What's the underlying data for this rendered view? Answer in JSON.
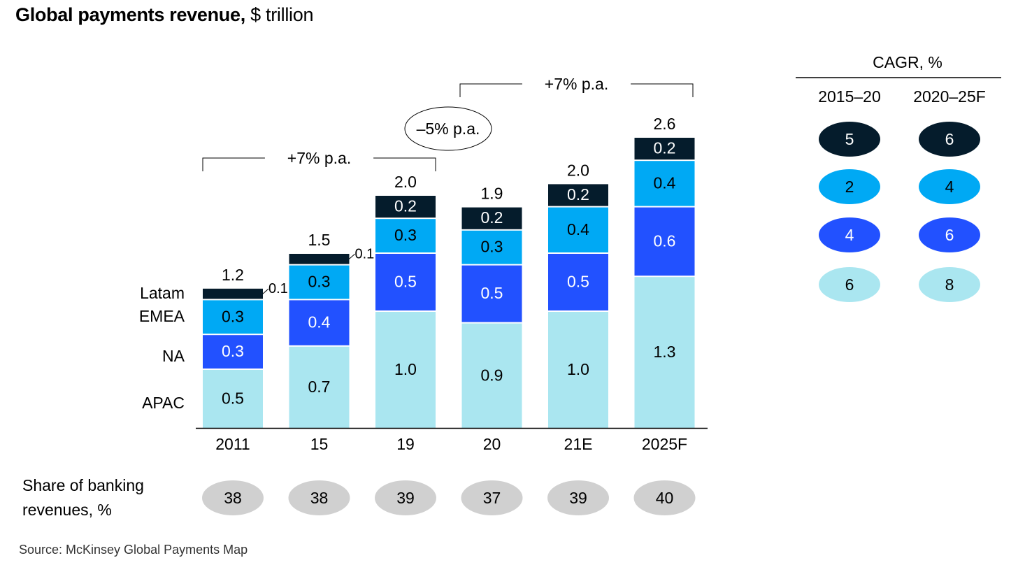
{
  "title": {
    "bold": "Global payments revenue,",
    "unit": "$ trillion"
  },
  "source": "Source: McKinsey Global Payments Map",
  "colors": {
    "Latam": "#051c2c",
    "EMEA": "#00a9f4",
    "NA": "#2251ff",
    "APAC": "#aae6f0",
    "share": "#d0d0d0"
  },
  "chart_data": {
    "type": "bar",
    "stacked": true,
    "title": "Global payments revenue, $ trillion",
    "categories": [
      "2011",
      "15",
      "19",
      "20",
      "21E",
      "2025F"
    ],
    "series": [
      {
        "name": "APAC",
        "values": [
          0.5,
          0.7,
          1.0,
          0.9,
          1.0,
          1.3
        ]
      },
      {
        "name": "NA",
        "values": [
          0.3,
          0.4,
          0.5,
          0.5,
          0.5,
          0.6
        ]
      },
      {
        "name": "EMEA",
        "values": [
          0.3,
          0.3,
          0.3,
          0.3,
          0.4,
          0.4
        ]
      },
      {
        "name": "Latam",
        "values": [
          0.1,
          0.1,
          0.2,
          0.2,
          0.2,
          0.2
        ]
      }
    ],
    "totals": [
      "1.2",
      "1.5",
      "2.0",
      "1.9",
      "2.0",
      "2.6"
    ],
    "segment_labels": [
      [
        "0.5",
        "0.3",
        "0.3",
        "0.1"
      ],
      [
        "0.7",
        "0.4",
        "0.3",
        "0.1"
      ],
      [
        "1.0",
        "0.5",
        "0.3",
        "0.2"
      ],
      [
        "0.9",
        "0.5",
        "0.3",
        "0.2"
      ],
      [
        "1.0",
        "0.5",
        "0.4",
        "0.2"
      ],
      [
        "1.3",
        "0.6",
        "0.4",
        "0.2"
      ]
    ],
    "ylim": [
      0,
      2.6
    ],
    "grid": false,
    "annotations": [
      {
        "label": "+7% p.a.",
        "from": "2011",
        "to": "19"
      },
      {
        "label": "–5% p.a.",
        "from": "19",
        "to": "20"
      },
      {
        "label": "+7% p.a.",
        "from": "20",
        "to": "2025F"
      }
    ],
    "share_of_banking": {
      "label_line1": "Share of banking",
      "label_line2": "revenues, %",
      "values": [
        "38",
        "38",
        "39",
        "37",
        "39",
        "40"
      ]
    },
    "cagr": {
      "title": "CAGR, %",
      "columns": [
        "2015–20",
        "2020–25F"
      ],
      "rows": [
        {
          "series": "Latam",
          "values": [
            "5",
            "6"
          ]
        },
        {
          "series": "EMEA",
          "values": [
            "2",
            "4"
          ]
        },
        {
          "series": "NA",
          "values": [
            "4",
            "6"
          ]
        },
        {
          "series": "APAC",
          "values": [
            "6",
            "8"
          ]
        }
      ]
    }
  }
}
